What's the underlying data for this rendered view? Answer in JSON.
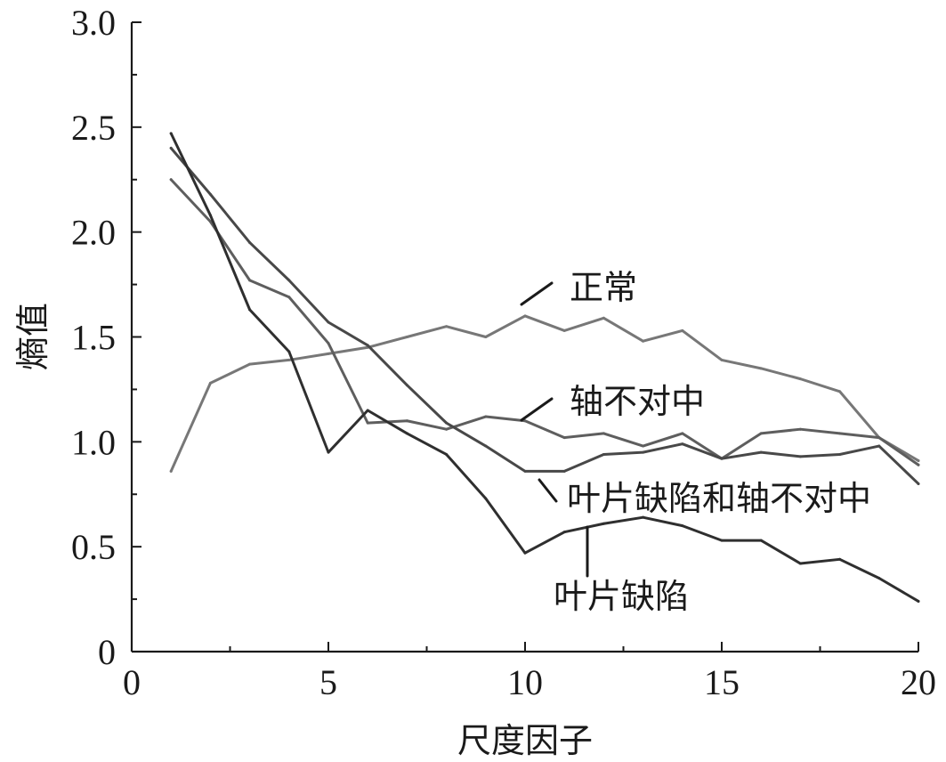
{
  "chart_data": {
    "type": "line",
    "xlabel": "尺度因子",
    "ylabel": "熵值",
    "xlim": [
      0,
      20
    ],
    "ylim": [
      0,
      3.0
    ],
    "x_ticks": [
      "0",
      "5",
      "10",
      "15",
      "20"
    ],
    "y_ticks": [
      "0",
      "0.5",
      "1.0",
      "1.5",
      "2.0",
      "2.5",
      "3.0"
    ],
    "grid": false,
    "legend": "none",
    "x": [
      1,
      2,
      3,
      4,
      5,
      6,
      7,
      8,
      9,
      10,
      11,
      12,
      13,
      14,
      15,
      16,
      17,
      18,
      19,
      20
    ],
    "series": [
      {
        "name": "正常",
        "color": "#777777",
        "values": [
          0.86,
          1.28,
          1.37,
          1.39,
          1.42,
          1.45,
          1.5,
          1.55,
          1.5,
          1.6,
          1.53,
          1.59,
          1.48,
          1.53,
          1.39,
          1.35,
          1.3,
          1.24,
          1.02,
          0.91
        ]
      },
      {
        "name": "轴不对中",
        "color": "#5e5e5e",
        "values": [
          2.25,
          2.05,
          1.77,
          1.69,
          1.47,
          1.09,
          1.1,
          1.06,
          1.12,
          1.1,
          1.02,
          1.04,
          0.98,
          1.04,
          0.92,
          1.04,
          1.06,
          1.04,
          1.02,
          0.89
        ]
      },
      {
        "name": "叶片缺陷和轴不对中",
        "color": "#484848",
        "values": [
          2.4,
          2.18,
          1.95,
          1.77,
          1.57,
          1.46,
          1.27,
          1.09,
          0.98,
          0.86,
          0.86,
          0.94,
          0.95,
          0.99,
          0.92,
          0.95,
          0.93,
          0.94,
          0.98,
          0.8
        ]
      },
      {
        "name": "叶片缺陷",
        "color": "#2f2f2f",
        "values": [
          2.47,
          2.08,
          1.63,
          1.43,
          0.95,
          1.15,
          1.04,
          0.94,
          0.73,
          0.47,
          0.57,
          0.61,
          0.64,
          0.6,
          0.53,
          0.53,
          0.42,
          0.44,
          0.35,
          0.24
        ]
      }
    ],
    "callouts": [
      {
        "series": 0,
        "text": "正常"
      },
      {
        "series": 1,
        "text": "轴不对中"
      },
      {
        "series": 2,
        "text": "叶片缺陷和轴不对中"
      },
      {
        "series": 3,
        "text": "叶片缺陷"
      }
    ]
  }
}
